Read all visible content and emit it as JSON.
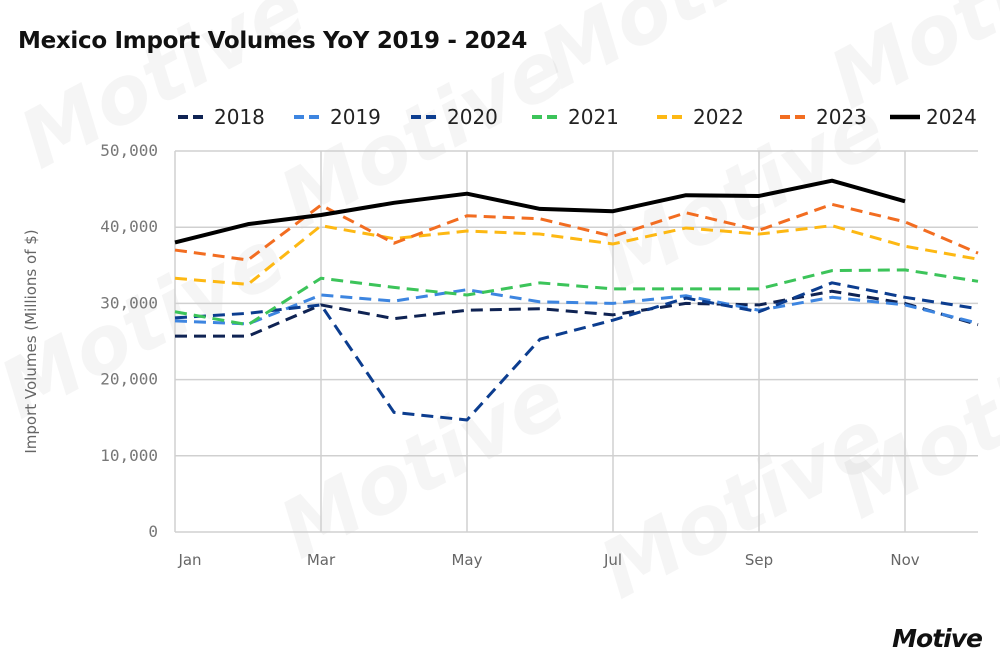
{
  "title": "Mexico Import Volumes YoY 2019 - 2024",
  "logo": "Motive",
  "watermark": "Motive",
  "chart_data": {
    "type": "line",
    "title": "Mexico Import Volumes YoY 2019 - 2024",
    "xlabel": "",
    "ylabel": "Import Volumes (Millions of $)",
    "x": [
      "Jan",
      "Feb",
      "Mar",
      "Apr",
      "May",
      "Jun",
      "Jul",
      "Aug",
      "Sep",
      "Oct",
      "Nov",
      "Dec"
    ],
    "x_tick_labels": [
      "Jan",
      "Mar",
      "May",
      "Jul",
      "Sep",
      "Nov"
    ],
    "ylim": [
      0,
      50000
    ],
    "y_ticks": [
      0,
      10000,
      20000,
      30000,
      40000,
      50000
    ],
    "y_tick_labels": [
      "0",
      "10,000",
      "20,000",
      "30,000",
      "40,000",
      "50,000"
    ],
    "grid": true,
    "legend_placement": "top",
    "series": [
      {
        "name": "2018",
        "color": "#0f2353",
        "style": "dashed",
        "values": [
          25700,
          25700,
          29800,
          28000,
          29100,
          29300,
          28500,
          30000,
          29800,
          31600,
          30000,
          27200
        ]
      },
      {
        "name": "2019",
        "color": "#3d85e0",
        "style": "dashed",
        "values": [
          27700,
          27300,
          31100,
          30300,
          31800,
          30200,
          30000,
          31000,
          29100,
          30800,
          29800,
          27400
        ]
      },
      {
        "name": "2020",
        "color": "#0c3d8f",
        "style": "dashed",
        "values": [
          28100,
          28700,
          29800,
          15700,
          14700,
          25300,
          27800,
          30700,
          28900,
          32700,
          30800,
          29300
        ]
      },
      {
        "name": "2021",
        "color": "#3cc45a",
        "style": "dashed",
        "values": [
          28900,
          27200,
          33300,
          32100,
          31100,
          32700,
          31900,
          31900,
          31900,
          34300,
          34400,
          32900
        ]
      },
      {
        "name": "2022",
        "color": "#fdb813",
        "style": "dashed",
        "values": [
          33300,
          32500,
          40200,
          38500,
          39500,
          39100,
          37800,
          39900,
          39100,
          40200,
          37500,
          35800
        ]
      },
      {
        "name": "2023",
        "color": "#f26d21",
        "style": "dashed",
        "values": [
          37000,
          35700,
          42900,
          37900,
          41500,
          41100,
          38800,
          41900,
          39600,
          43000,
          40700,
          36600
        ]
      },
      {
        "name": "2024",
        "color": "#000000",
        "style": "solid",
        "values": [
          38000,
          40400,
          41600,
          43200,
          44400,
          42400,
          42100,
          44200,
          44100,
          46100,
          43400,
          null
        ]
      }
    ]
  }
}
